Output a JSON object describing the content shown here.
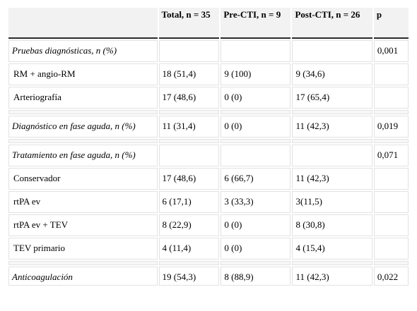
{
  "table": {
    "headers": [
      "",
      "Total, n = 35",
      "Pre-CTI, n = 9",
      "Post-CTI, n = 26",
      "p"
    ],
    "rows": [
      {
        "kind": "section",
        "cells": [
          "Pruebas diagnósticas, n (%)",
          "",
          "",
          "",
          "0,001"
        ]
      },
      {
        "kind": "item",
        "cells": [
          "RM + angio-RM",
          "18 (51,4)",
          "9 (100)",
          "9 (34,6)",
          ""
        ]
      },
      {
        "kind": "item",
        "cells": [
          "Arteriografía",
          "17 (48,6)",
          "0 (0)",
          "17 (65,4)",
          ""
        ]
      },
      {
        "kind": "spacer",
        "cells": [
          "",
          "",
          "",
          "",
          ""
        ]
      },
      {
        "kind": "section",
        "cells": [
          "Diagnóstico en fase aguda, n (%)",
          "11 (31,4)",
          "0 (0)",
          "11 (42,3)",
          "0,019"
        ]
      },
      {
        "kind": "spacer",
        "cells": [
          "",
          "",
          "",
          "",
          ""
        ]
      },
      {
        "kind": "section",
        "cells": [
          "Tratamiento en fase aguda, n (%)",
          "",
          "",
          "",
          "0,071"
        ]
      },
      {
        "kind": "item",
        "cells": [
          "Conservador",
          "17 (48,6)",
          "6 (66,7)",
          "11 (42,3)",
          ""
        ]
      },
      {
        "kind": "item",
        "cells": [
          "rtPA ev",
          "6 (17,1)",
          "3 (33,3)",
          "3(11,5)",
          ""
        ]
      },
      {
        "kind": "item",
        "cells": [
          "rtPA ev + TEV",
          "8 (22,9)",
          "0 (0)",
          "8 (30,8)",
          ""
        ]
      },
      {
        "kind": "item",
        "cells": [
          "TEV primario",
          "4 (11,4)",
          "0 (0)",
          "4 (15,4)",
          ""
        ]
      },
      {
        "kind": "spacer",
        "cells": [
          "",
          "",
          "",
          "",
          ""
        ]
      },
      {
        "kind": "section",
        "cells": [
          "Anticoagulación",
          "19 (54,3)",
          "8 (88,9)",
          "11 (42,3)",
          "0,022"
        ]
      }
    ]
  }
}
